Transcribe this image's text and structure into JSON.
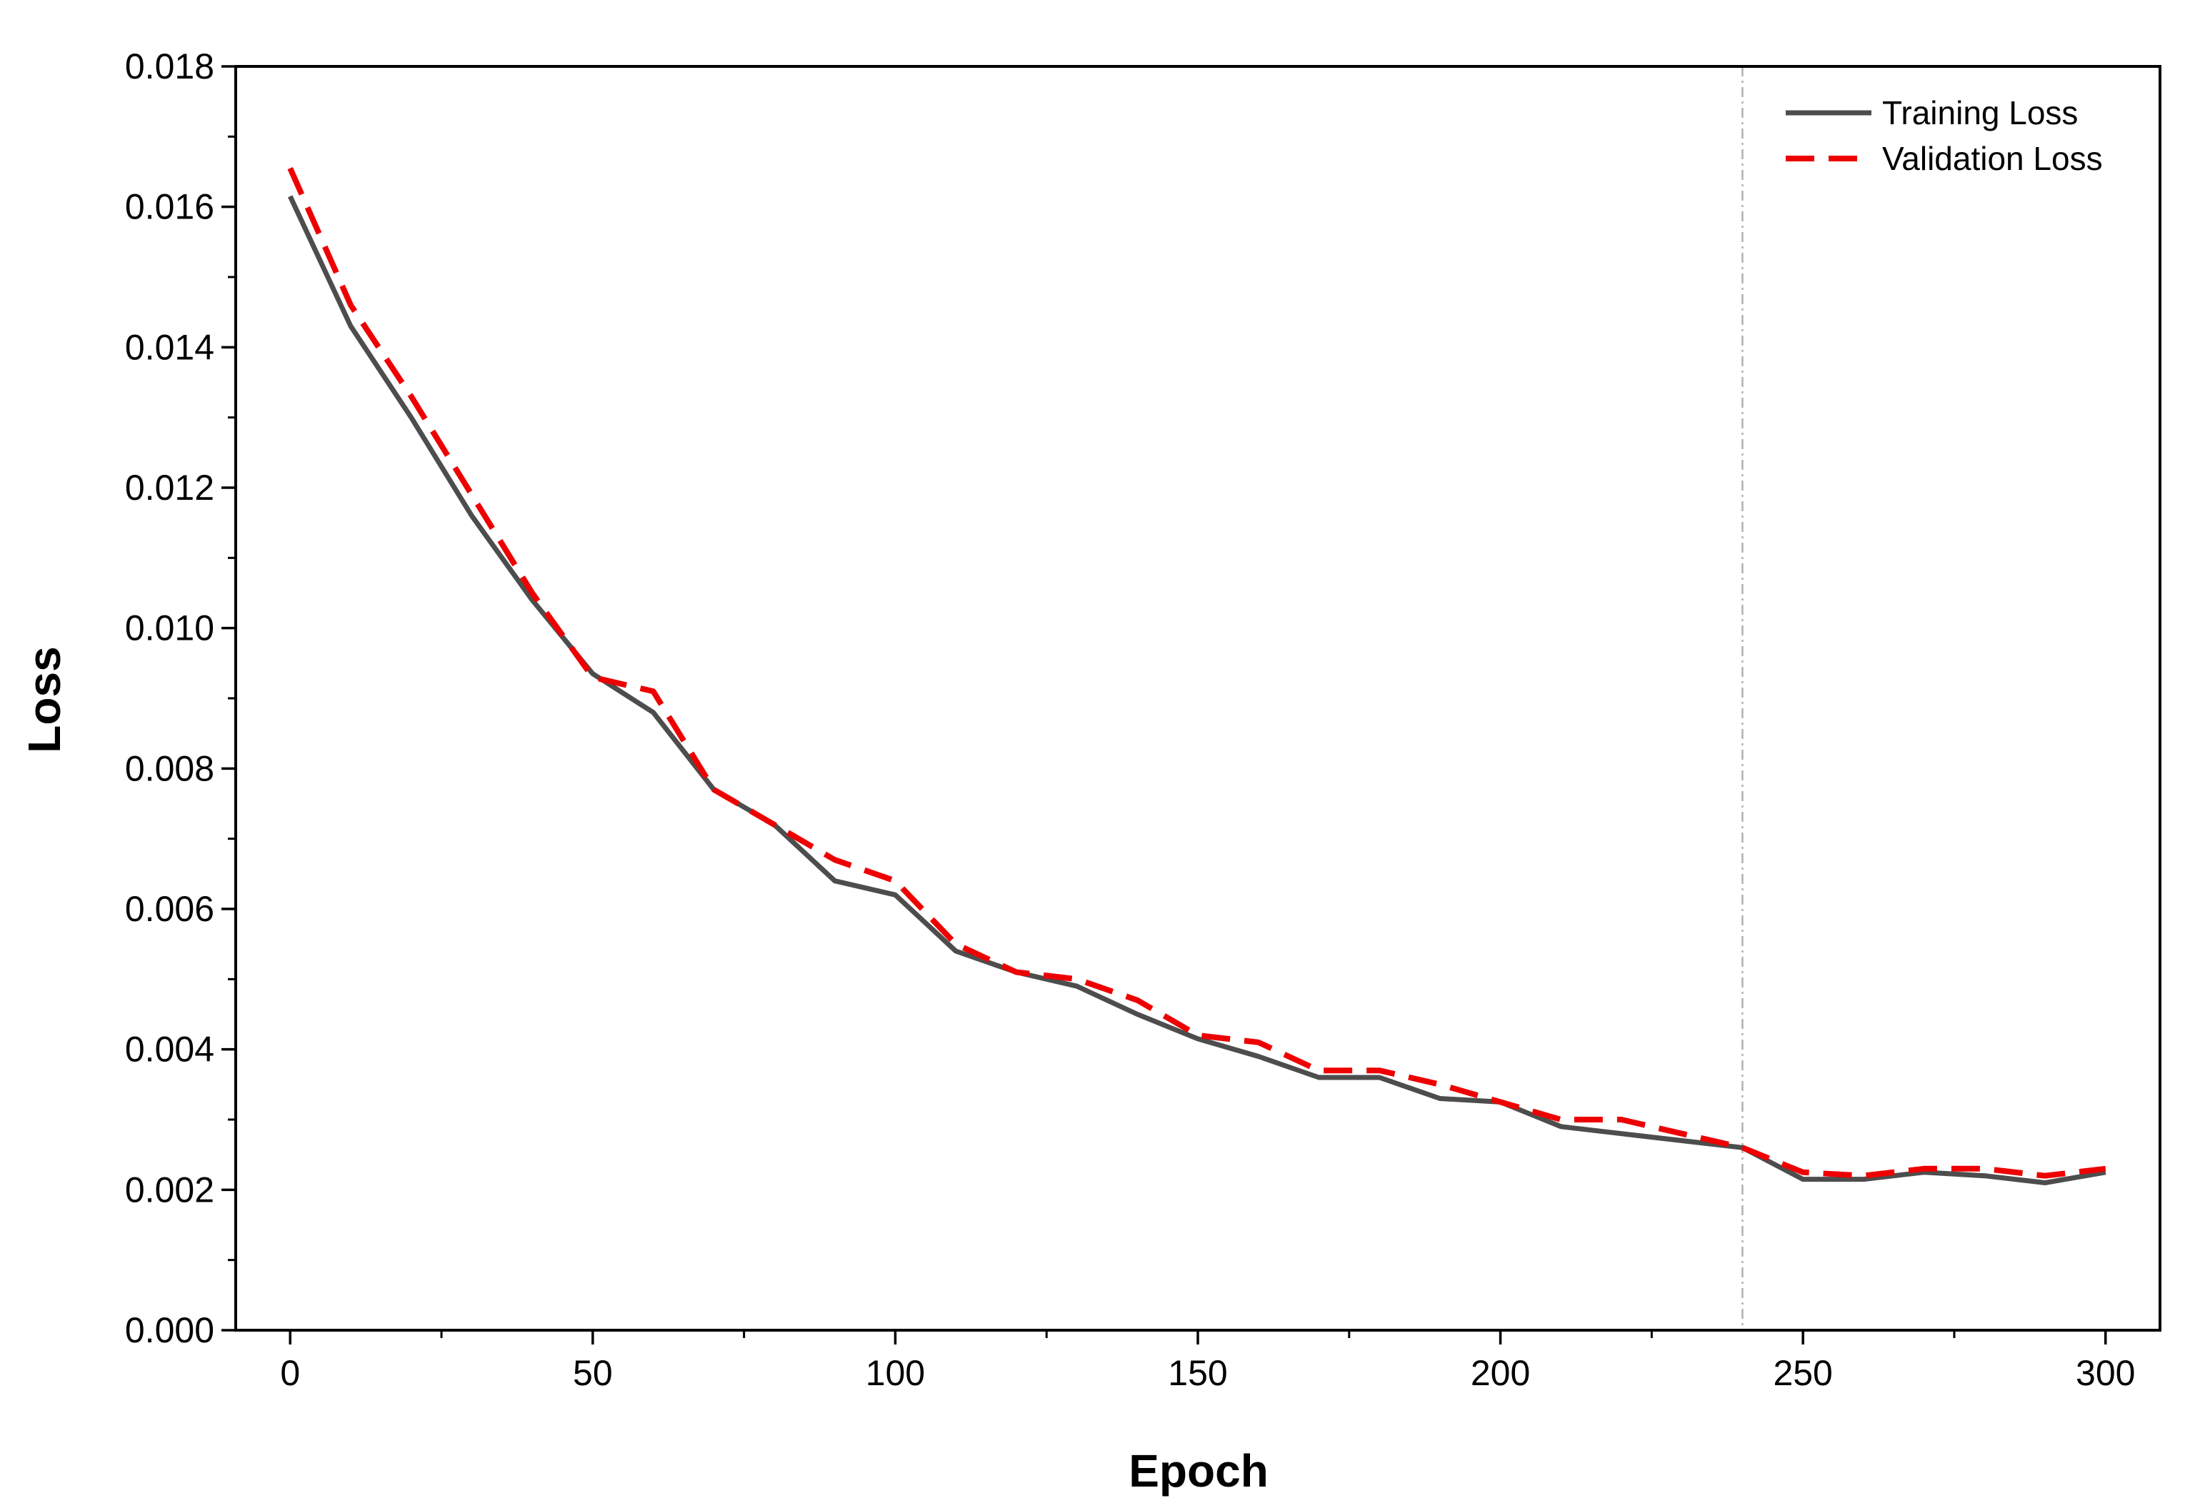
{
  "chart_data": {
    "type": "line",
    "xlabel": "Epoch",
    "ylabel": "Loss",
    "xlim": [
      -9,
      309
    ],
    "ylim": [
      0,
      0.018
    ],
    "x_ticks": [
      0,
      50,
      100,
      150,
      200,
      250,
      300
    ],
    "x_tick_labels": [
      "0",
      "50",
      "100",
      "150",
      "200",
      "250",
      "300"
    ],
    "y_ticks": [
      0,
      0.002,
      0.004,
      0.006,
      0.008,
      0.01,
      0.012,
      0.014,
      0.016,
      0.018
    ],
    "y_tick_labels": [
      "0.000",
      "0.002",
      "0.004",
      "0.006",
      "0.008",
      "0.010",
      "0.012",
      "0.014",
      "0.016",
      "0.018"
    ],
    "grid": false,
    "legend_position": "top-right",
    "reference_line": {
      "orientation": "vertical",
      "x": 240,
      "style": "dash-dot",
      "color": "#b0b0b0"
    },
    "x": [
      0,
      10,
      20,
      30,
      40,
      50,
      60,
      70,
      80,
      90,
      100,
      110,
      120,
      130,
      140,
      150,
      160,
      170,
      180,
      190,
      200,
      210,
      220,
      230,
      240,
      250,
      260,
      270,
      280,
      290,
      300
    ],
    "series": [
      {
        "name": "Training Loss",
        "color": "#4d4d4d",
        "line_style": "solid",
        "values": [
          0.01615,
          0.0143,
          0.013,
          0.0116,
          0.0104,
          0.00935,
          0.0088,
          0.0077,
          0.0072,
          0.0064,
          0.0062,
          0.0054,
          0.0051,
          0.0049,
          0.0045,
          0.00415,
          0.0039,
          0.0036,
          0.0036,
          0.0033,
          0.00325,
          0.0029,
          0.0028,
          0.0027,
          0.0026,
          0.00215,
          0.00215,
          0.00225,
          0.0022,
          0.0021,
          0.00225
        ]
      },
      {
        "name": "Validation Loss",
        "color": "#ee0000",
        "line_style": "dashed",
        "values": [
          0.01655,
          0.0146,
          0.0133,
          0.0119,
          0.0105,
          0.0093,
          0.0091,
          0.0077,
          0.0072,
          0.0067,
          0.0064,
          0.0055,
          0.0051,
          0.005,
          0.0047,
          0.0042,
          0.0041,
          0.0037,
          0.0037,
          0.0035,
          0.00325,
          0.003,
          0.003,
          0.0028,
          0.0026,
          0.00225,
          0.0022,
          0.0023,
          0.0023,
          0.0022,
          0.0023
        ]
      }
    ]
  }
}
